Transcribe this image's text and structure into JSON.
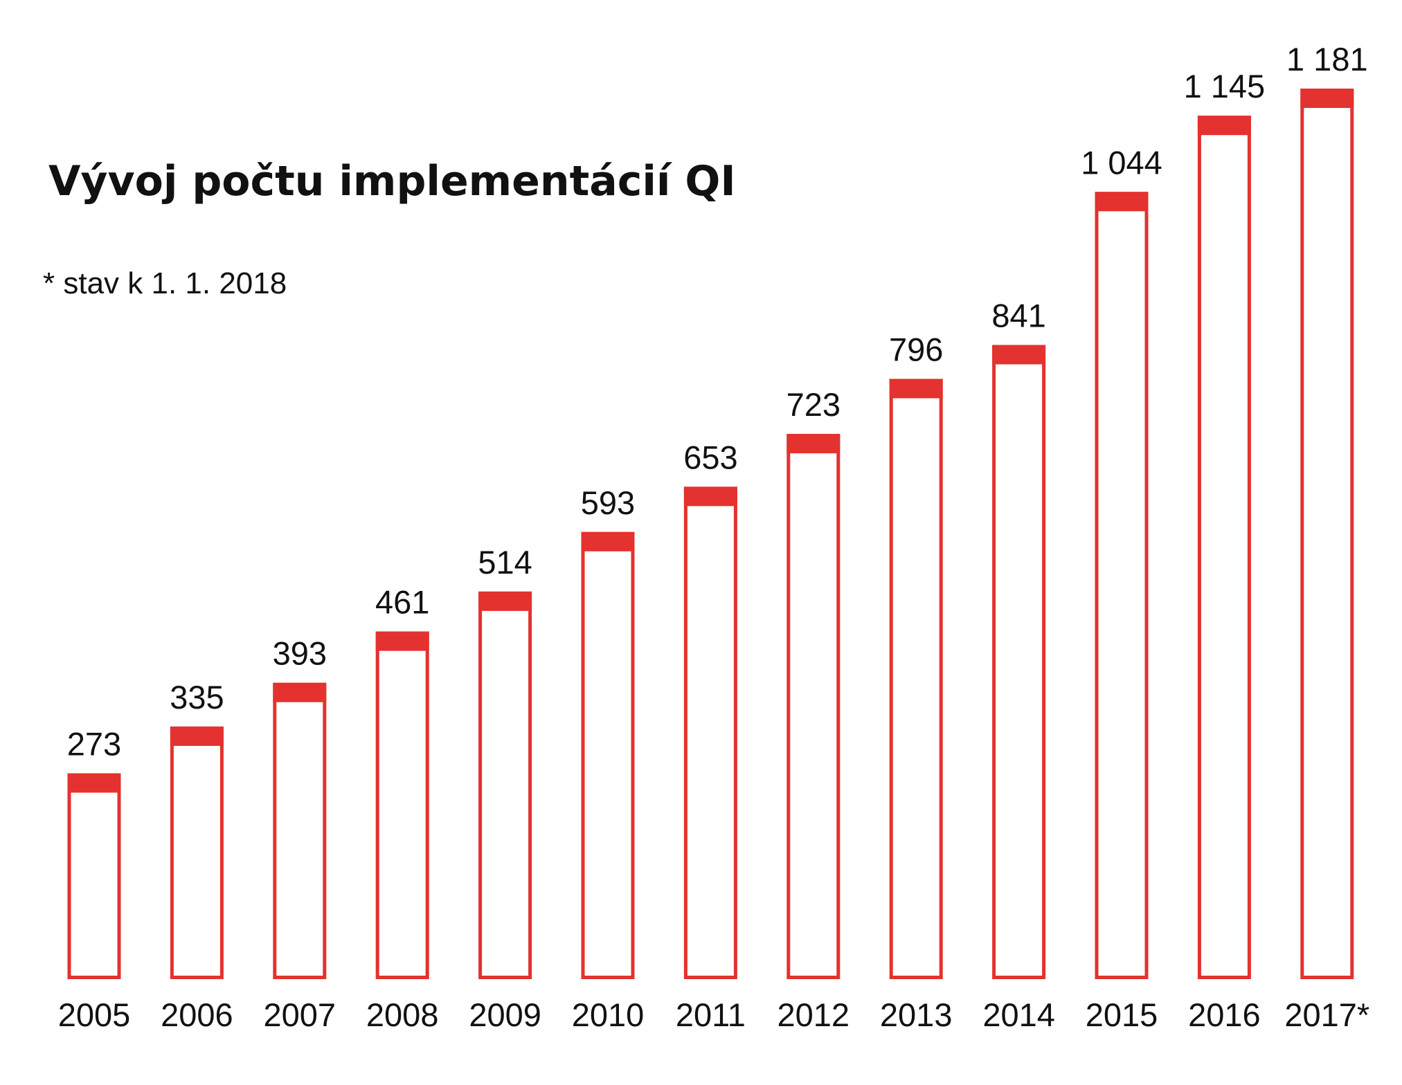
{
  "chart_data": {
    "type": "bar",
    "title": "Vývoj počtu implementácií QI",
    "note": "* stav k 1. 1. 2018",
    "categories": [
      "2005",
      "2006",
      "2007",
      "2008",
      "2009",
      "2010",
      "2011",
      "2012",
      "2013",
      "2014",
      "2015",
      "2016",
      "2017*"
    ],
    "values": [
      273,
      335,
      393,
      461,
      514,
      593,
      653,
      723,
      796,
      841,
      1044,
      1145,
      1181
    ],
    "value_labels": [
      "273",
      "335",
      "393",
      "461",
      "514",
      "593",
      "653",
      "723",
      "796",
      "841",
      "1 044",
      "1 145",
      "1 181"
    ],
    "xlabel": "",
    "ylabel": "",
    "ylim": [
      0,
      1181
    ],
    "grid": false,
    "legend": "none",
    "colors": {
      "bar_outline": "#e3322f",
      "bar_cap": "#e3322f",
      "bar_fill": "#ffffff",
      "text": "#111111"
    }
  }
}
